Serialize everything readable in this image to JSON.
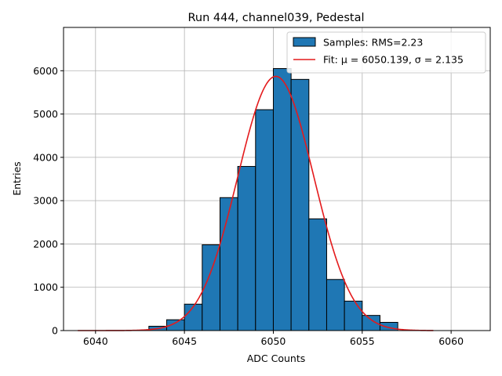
{
  "chart_data": {
    "type": "bar",
    "title": "Run 444, channel039, Pedestal",
    "xlabel": "ADC Counts",
    "ylabel": "Entries",
    "xlim": [
      6038.2,
      6062.2
    ],
    "ylim": [
      0,
      7000
    ],
    "grid": true,
    "legend_position": "top-right",
    "x_ticks": [
      6040,
      6045,
      6050,
      6055,
      6060
    ],
    "y_ticks": [
      0,
      1000,
      2000,
      3000,
      4000,
      5000,
      6000
    ],
    "bin_width": 1,
    "bin_lefts": [
      6043,
      6044,
      6045,
      6046,
      6047,
      6048,
      6049,
      6050,
      6051,
      6052,
      6053,
      6054,
      6055,
      6056
    ],
    "values": [
      100,
      250,
      610,
      1980,
      3070,
      3790,
      5100,
      6050,
      5800,
      2580,
      1180,
      680,
      350,
      190
    ],
    "series": [
      {
        "name": "Samples: RMS=2.23",
        "kind": "histogram",
        "color": "#1f77b4"
      },
      {
        "name": "Fit: μ = 6050.139, σ = 2.135",
        "kind": "gaussian-fit",
        "color": "#e41a1c",
        "mu": 6050.139,
        "sigma": 2.135,
        "amplitude": 5870,
        "x_range": [
          6039,
          6059
        ]
      }
    ]
  }
}
